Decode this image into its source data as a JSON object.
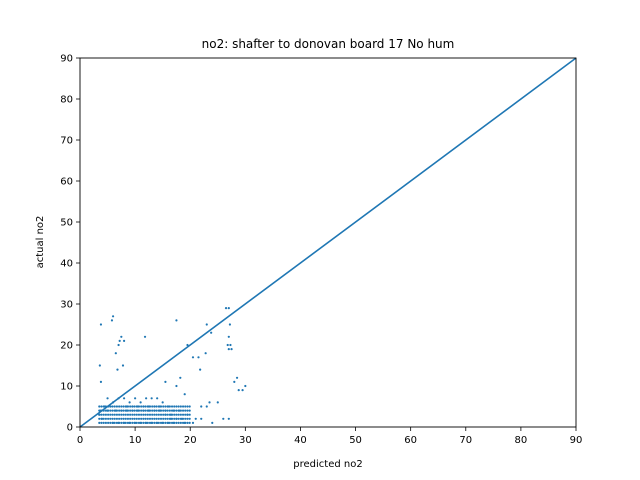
{
  "chart_data": {
    "type": "scatter",
    "title": "no2: shafter to donovan board 17 No hum",
    "xlabel": "predicted no2",
    "ylabel": "actual no2",
    "xlim": [
      0,
      90
    ],
    "ylim": [
      0,
      90
    ],
    "xticks": [
      "0",
      "10",
      "20",
      "30",
      "40",
      "50",
      "60",
      "70",
      "80",
      "90"
    ],
    "yticks": [
      "0",
      "10",
      "20",
      "30",
      "40",
      "50",
      "60",
      "70",
      "80",
      "90"
    ],
    "grid": false,
    "legend": "none",
    "colors": {
      "series": "#1f77b4"
    },
    "series": [
      {
        "name": "",
        "type": "scatter",
        "points": [
          [
            3.8,
            25
          ],
          [
            3.6,
            15
          ],
          [
            3.8,
            11
          ],
          [
            5.8,
            26
          ],
          [
            6.0,
            27
          ],
          [
            7.5,
            22
          ],
          [
            7.0,
            20
          ],
          [
            7.2,
            21
          ],
          [
            8.0,
            21
          ],
          [
            6.5,
            18
          ],
          [
            6.8,
            14
          ],
          [
            7.8,
            15
          ],
          [
            11.8,
            22
          ],
          [
            17.5,
            26
          ],
          [
            23.0,
            25
          ],
          [
            23.8,
            23
          ],
          [
            22.8,
            18
          ],
          [
            20.5,
            17
          ],
          [
            21.5,
            17
          ],
          [
            19.5,
            20
          ],
          [
            21.8,
            14
          ],
          [
            18.2,
            12
          ],
          [
            17.5,
            10
          ],
          [
            15.5,
            11
          ],
          [
            19.0,
            8
          ],
          [
            26.5,
            29
          ],
          [
            27.0,
            29
          ],
          [
            27.2,
            25
          ],
          [
            27.0,
            22
          ],
          [
            26.8,
            20
          ],
          [
            27.3,
            20
          ],
          [
            27.0,
            19
          ],
          [
            27.5,
            19
          ],
          [
            28.0,
            11
          ],
          [
            28.5,
            12
          ],
          [
            28.8,
            9
          ],
          [
            29.5,
            9
          ],
          [
            30.0,
            10
          ],
          [
            23.5,
            6
          ],
          [
            25.0,
            6
          ],
          [
            23.0,
            5
          ],
          [
            22.0,
            5
          ],
          [
            26.0,
            2
          ],
          [
            27.0,
            2
          ],
          [
            20.5,
            1
          ],
          [
            19.0,
            1
          ],
          [
            17.0,
            1
          ],
          [
            14.0,
            1
          ],
          [
            9.0,
            1
          ],
          [
            5.0,
            7
          ],
          [
            5.5,
            5
          ],
          [
            6.0,
            6
          ],
          [
            7.0,
            7
          ],
          [
            8.0,
            7
          ],
          [
            9.0,
            6
          ],
          [
            10.0,
            7
          ],
          [
            11.0,
            6
          ],
          [
            12.0,
            7
          ],
          [
            13.0,
            7
          ],
          [
            14.0,
            7
          ],
          [
            15.0,
            6
          ],
          [
            16.0,
            5
          ],
          [
            17.0,
            4
          ],
          [
            18.0,
            4
          ],
          [
            11.5,
            5
          ],
          [
            12.5,
            5
          ],
          [
            13.5,
            5
          ],
          [
            14.5,
            5
          ],
          [
            15.5,
            4
          ],
          [
            16.5,
            3
          ],
          [
            17.5,
            2
          ],
          [
            18.5,
            2
          ],
          [
            19.5,
            3
          ],
          [
            21.0,
            2
          ],
          [
            22.0,
            2
          ],
          [
            24.0,
            1
          ],
          [
            3.5,
            3
          ],
          [
            3.7,
            4
          ],
          [
            4.0,
            2
          ],
          [
            4.5,
            5
          ],
          [
            5.0,
            4
          ],
          [
            6.5,
            4
          ],
          [
            7.5,
            4
          ],
          [
            8.5,
            4
          ],
          [
            9.5,
            4
          ],
          [
            10.5,
            4
          ],
          [
            11.5,
            4
          ],
          [
            12.5,
            4
          ],
          [
            13.5,
            4
          ],
          [
            14.5,
            4
          ],
          [
            15.5,
            3
          ],
          [
            16.5,
            2
          ],
          [
            8.5,
            5
          ],
          [
            9.5,
            5
          ],
          [
            10.5,
            5
          ],
          [
            6.0,
            1
          ],
          [
            7.0,
            1
          ],
          [
            8.0,
            1
          ],
          [
            10.0,
            1
          ],
          [
            11.0,
            1
          ],
          [
            12.0,
            1
          ],
          [
            13.0,
            1
          ],
          [
            15.0,
            1
          ],
          [
            16.0,
            1
          ]
        ],
        "band": {
          "x_from": 3.5,
          "x_to": 20.0,
          "y_values": [
            1,
            2,
            3,
            4,
            5
          ]
        }
      },
      {
        "name": "",
        "type": "line",
        "points": [
          [
            0,
            0
          ],
          [
            90,
            90
          ]
        ]
      }
    ]
  }
}
